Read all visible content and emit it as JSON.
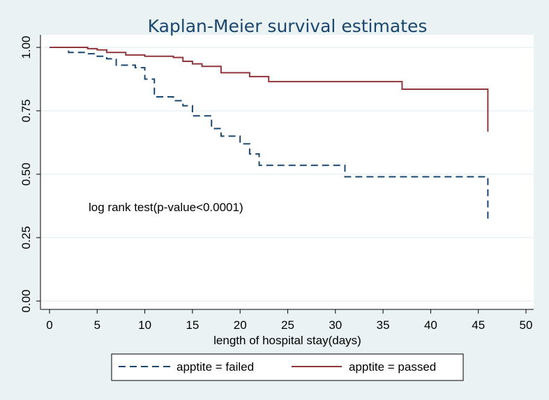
{
  "chart_data": {
    "type": "line",
    "step": true,
    "title": "Kaplan-Meier survival estimates",
    "xlabel": "length of hospital stay(days)",
    "ylabel": "",
    "xlim": [
      0,
      50
    ],
    "ylim": [
      0,
      1
    ],
    "xticks": [
      0,
      5,
      10,
      15,
      20,
      25,
      30,
      35,
      40,
      45,
      50
    ],
    "yticks": [
      0.0,
      0.25,
      0.5,
      0.75,
      1.0
    ],
    "xtick_labels": [
      "0",
      "5",
      "10",
      "15",
      "20",
      "25",
      "30",
      "35",
      "40",
      "45",
      "50"
    ],
    "ytick_labels": [
      "0.00",
      "0.25",
      "0.50",
      "0.75",
      "1.00"
    ],
    "grid": true,
    "annotation": "log rank test(p-value<0.0001)",
    "legend_position": "bottom",
    "series": [
      {
        "name": "apptite = failed",
        "color": "#1a476f",
        "style": "dashed",
        "x": [
          0,
          2,
          4,
          5,
          6,
          7,
          9,
          10,
          11,
          13,
          14,
          15,
          17,
          18,
          20,
          21,
          22,
          31,
          46
        ],
        "y": [
          1.0,
          0.98,
          0.975,
          0.965,
          0.955,
          0.93,
          0.92,
          0.875,
          0.805,
          0.79,
          0.77,
          0.73,
          0.68,
          0.65,
          0.62,
          0.58,
          0.535,
          0.49,
          0.325
        ]
      },
      {
        "name": "apptite = passed",
        "color": "#90353b",
        "style": "solid",
        "x": [
          0,
          4,
          5,
          6,
          8,
          10,
          13,
          14,
          15,
          16,
          18,
          21,
          23,
          37,
          46
        ],
        "y": [
          1.0,
          0.995,
          0.99,
          0.98,
          0.97,
          0.965,
          0.96,
          0.945,
          0.935,
          0.925,
          0.9,
          0.885,
          0.865,
          0.835,
          0.668
        ]
      }
    ]
  }
}
